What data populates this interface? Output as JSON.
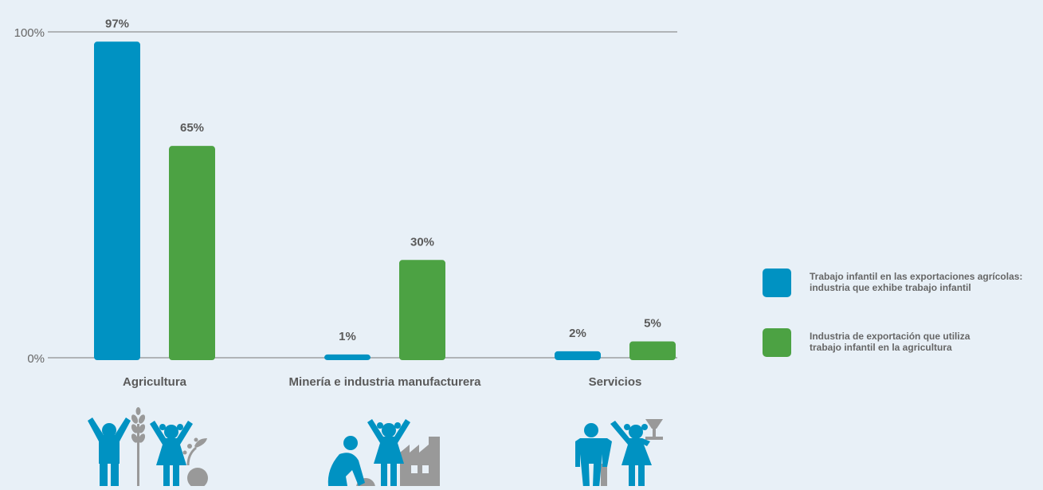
{
  "chart_data": {
    "type": "bar",
    "categories": [
      "Agricultura",
      "Minería e industria manufacturera",
      "Servicios"
    ],
    "series": [
      {
        "name": "Trabajo infantil en las exportaciones agrícolas: industria que exhibe trabajo infantil",
        "legend_lines": [
          "Trabajo infantil en las exportaciones agrícolas:",
          "industria que exhibe trabajo infantil"
        ],
        "color": "#0092c2",
        "values": [
          97,
          1,
          2
        ],
        "labels": [
          "97%",
          "1%",
          "2%"
        ]
      },
      {
        "name": "Industria de exportación que utiliza trabajo infantil en la agricultura",
        "legend_lines": [
          "Industria de exportación que utiliza",
          "trabajo infantil en la agricultura"
        ],
        "color": "#4ca243",
        "values": [
          65,
          30,
          5
        ],
        "labels": [
          "65%",
          "30%",
          "5%"
        ]
      }
    ],
    "ylim": [
      0,
      100
    ],
    "yticks": [
      {
        "value": 0,
        "label": "0%"
      },
      {
        "value": 100,
        "label": "100%"
      }
    ],
    "legend_position": "right",
    "icons": [
      "agriculture-children-icon",
      "mining-manufacturing-children-icon",
      "services-children-icon"
    ],
    "colors": {
      "icon_blue": "#0092c2",
      "icon_gray": "#999999",
      "axis": "#777777"
    }
  }
}
